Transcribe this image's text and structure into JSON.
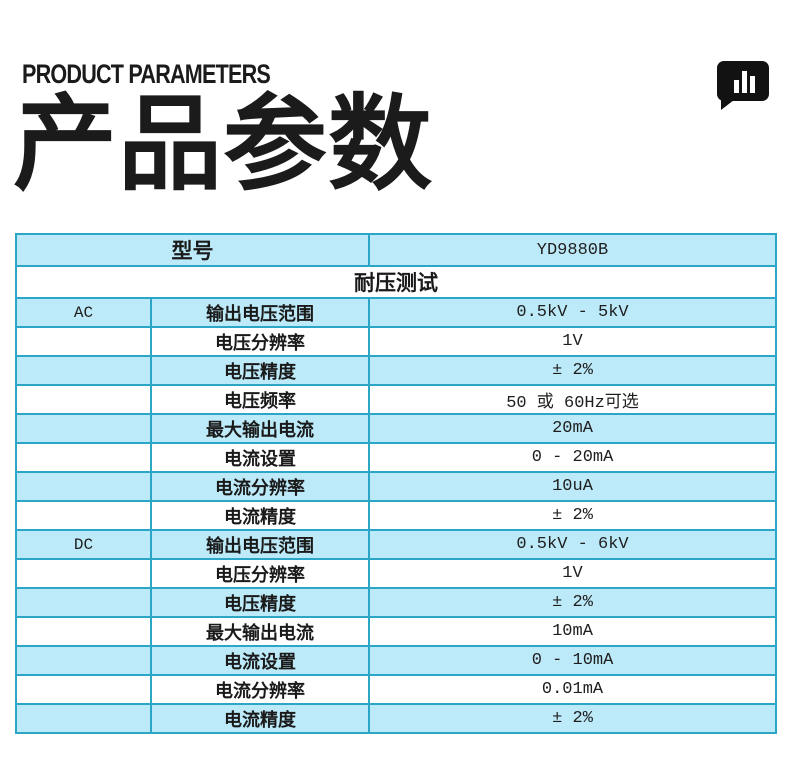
{
  "header": {
    "eyebrow": "PRODUCT PARAMETERS",
    "title": "产品参数",
    "icon": "bar-chart-speech-bubble-icon"
  },
  "colors": {
    "table_border": "#2ba6c6",
    "row_shade": "#bdeaf9",
    "text": "#1a1a1a",
    "icon": "#121212"
  },
  "table": {
    "model_label": "型号",
    "model_value": "YD9880B",
    "section_title": "耐压测试",
    "rows": [
      {
        "group": "AC",
        "param": "输出电压范围",
        "value": "0.5kV - 5kV",
        "shade": true
      },
      {
        "group": "",
        "param": "电压分辨率",
        "value": "1V",
        "shade": false
      },
      {
        "group": "",
        "param": "电压精度",
        "value": "± 2%",
        "shade": true
      },
      {
        "group": "",
        "param": "电压频率",
        "value": "50 或 60Hz可选",
        "shade": false
      },
      {
        "group": "",
        "param": "最大输出电流",
        "value": "20mA",
        "shade": true
      },
      {
        "group": "",
        "param": "电流设置",
        "value": "0 - 20mA",
        "shade": false
      },
      {
        "group": "",
        "param": "电流分辨率",
        "value": "10uA",
        "shade": true
      },
      {
        "group": "",
        "param": "电流精度",
        "value": "± 2%",
        "shade": false
      },
      {
        "group": "DC",
        "param": "输出电压范围",
        "value": "0.5kV - 6kV",
        "shade": true
      },
      {
        "group": "",
        "param": "电压分辨率",
        "value": "1V",
        "shade": false
      },
      {
        "group": "",
        "param": "电压精度",
        "value": "± 2%",
        "shade": true
      },
      {
        "group": "",
        "param": "最大输出电流",
        "value": "10mA",
        "shade": false
      },
      {
        "group": "",
        "param": "电流设置",
        "value": "0 - 10mA",
        "shade": true
      },
      {
        "group": "",
        "param": "电流分辨率",
        "value": "0.01mA",
        "shade": false
      },
      {
        "group": "",
        "param": "电流精度",
        "value": "± 2%",
        "shade": true
      }
    ]
  }
}
